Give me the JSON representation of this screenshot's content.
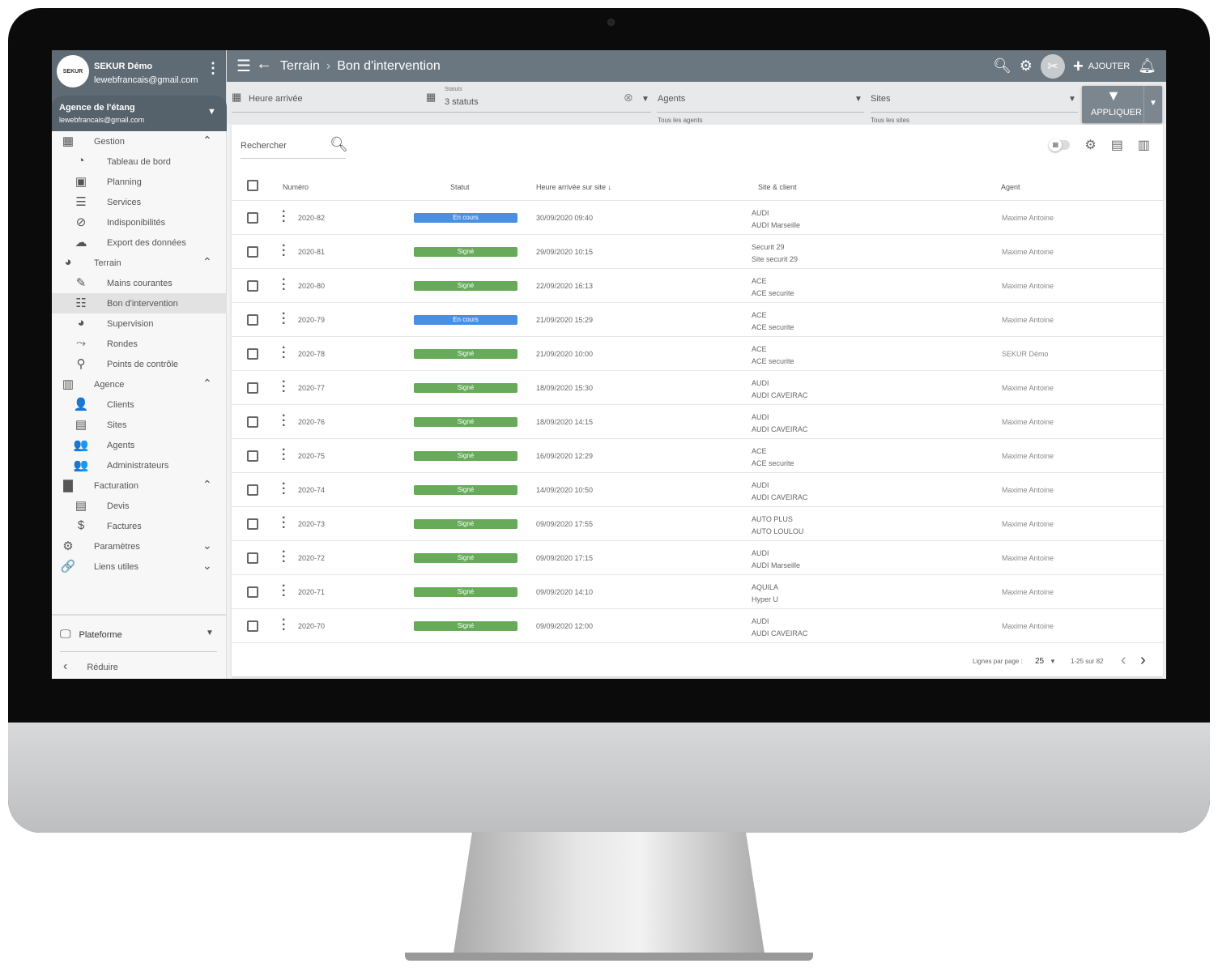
{
  "user": {
    "name": "SEKUR Démo",
    "email": "lewebfrancais@gmail.com",
    "logo": "SEKUR"
  },
  "agency": {
    "name": "Agence de l'étang",
    "email": "lewebfrancais@gmail.com"
  },
  "nav": [
    {
      "label": "Gestion",
      "type": "sec",
      "icon": "▦",
      "chev": "⌃"
    },
    {
      "label": "Tableau de bord",
      "type": "sub",
      "icon": "◔"
    },
    {
      "label": "Planning",
      "type": "sub",
      "icon": "▣"
    },
    {
      "label": "Services",
      "type": "sub",
      "icon": "☰"
    },
    {
      "label": "Indisponibilités",
      "type": "sub",
      "icon": "⊘"
    },
    {
      "label": "Export des données",
      "type": "sub",
      "icon": "☁"
    },
    {
      "label": "Terrain",
      "type": "sec",
      "icon": "◕",
      "chev": "⌃"
    },
    {
      "label": "Mains courantes",
      "type": "sub",
      "icon": "✎"
    },
    {
      "label": "Bon d'intervention",
      "type": "sub",
      "icon": "☷",
      "active": true
    },
    {
      "label": "Supervision",
      "type": "sub",
      "icon": "◕"
    },
    {
      "label": "Rondes",
      "type": "sub",
      "icon": "⤳"
    },
    {
      "label": "Points de contrôle",
      "type": "sub",
      "icon": "⚲"
    },
    {
      "label": "Agence",
      "type": "sec",
      "icon": "▥",
      "chev": "⌃"
    },
    {
      "label": "Clients",
      "type": "sub",
      "icon": "👤"
    },
    {
      "label": "Sites",
      "type": "sub",
      "icon": "▤"
    },
    {
      "label": "Agents",
      "type": "sub",
      "icon": "👥"
    },
    {
      "label": "Administrateurs",
      "type": "sub",
      "icon": "👥"
    },
    {
      "label": "Facturation",
      "type": "sec",
      "icon": "▇",
      "chev": "⌃"
    },
    {
      "label": "Devis",
      "type": "sub",
      "icon": "▤"
    },
    {
      "label": "Factures",
      "type": "sub",
      "icon": "$"
    },
    {
      "label": "Paramètres",
      "type": "sec",
      "icon": "⚙",
      "chev": "⌄"
    },
    {
      "label": "Liens utiles",
      "type": "sec",
      "icon": "🔗",
      "chev": "⌄"
    }
  ],
  "footer": {
    "platform": "Plateforme",
    "reduce": "Réduire"
  },
  "topbar": {
    "section": "Terrain",
    "page": "Bon d'intervention",
    "add": "AJOUTER"
  },
  "filters": {
    "date": "Heure arrivée",
    "status_label": "Statuts",
    "status_value": "3 statuts",
    "agents": "Agents",
    "agents_hint": "Tous les agents",
    "sites": "Sites",
    "sites_hint": "Tous les sites",
    "apply": "APPLIQUER"
  },
  "search": {
    "placeholder": "Rechercher"
  },
  "table": {
    "headers": {
      "number": "Numéro",
      "status": "Statut",
      "arrival": "Heure arrivée sur site ↓",
      "site": "Site & client",
      "agent": "Agent"
    },
    "rows": [
      {
        "number": "2020-82",
        "status": "En cours",
        "date": "30/09/2020 09:40",
        "client": "AUDI",
        "site": "AUDI Marseille",
        "agent": "Maxime Antoine"
      },
      {
        "number": "2020-81",
        "status": "Signé",
        "date": "29/09/2020 10:15",
        "client": "Securit 29",
        "site": "Site securit 29",
        "agent": "Maxime Antoine"
      },
      {
        "number": "2020-80",
        "status": "Signé",
        "date": "22/09/2020 16:13",
        "client": "ACE",
        "site": "ACE securite",
        "agent": "Maxime Antoine"
      },
      {
        "number": "2020-79",
        "status": "En cours",
        "date": "21/09/2020 15:29",
        "client": "ACE",
        "site": "ACE securite",
        "agent": "Maxime Antoine"
      },
      {
        "number": "2020-78",
        "status": "Signé",
        "date": "21/09/2020 10:00",
        "client": "ACE",
        "site": "ACE securite",
        "agent": "SEKUR Démo"
      },
      {
        "number": "2020-77",
        "status": "Signé",
        "date": "18/09/2020 15:30",
        "client": "AUDI",
        "site": "AUDI CAVEIRAC",
        "agent": "Maxime Antoine"
      },
      {
        "number": "2020-76",
        "status": "Signé",
        "date": "18/09/2020 14:15",
        "client": "AUDI",
        "site": "AUDI CAVEIRAC",
        "agent": "Maxime Antoine"
      },
      {
        "number": "2020-75",
        "status": "Signé",
        "date": "16/09/2020 12:29",
        "client": "ACE",
        "site": "ACE securite",
        "agent": "Maxime Antoine"
      },
      {
        "number": "2020-74",
        "status": "Signé",
        "date": "14/09/2020 10:50",
        "client": "AUDI",
        "site": "AUDI CAVEIRAC",
        "agent": "Maxime Antoine"
      },
      {
        "number": "2020-73",
        "status": "Signé",
        "date": "09/09/2020 17:55",
        "client": "AUTO PLUS",
        "site": "AUTO LOULOU",
        "agent": "Maxime Antoine"
      },
      {
        "number": "2020-72",
        "status": "Signé",
        "date": "09/09/2020 17:15",
        "client": "AUDI",
        "site": "AUDI Marseille",
        "agent": "Maxime Antoine"
      },
      {
        "number": "2020-71",
        "status": "Signé",
        "date": "09/09/2020 14:10",
        "client": "AQUILA",
        "site": "Hyper U",
        "agent": "Maxime Antoine"
      },
      {
        "number": "2020-70",
        "status": "Signé",
        "date": "09/09/2020 12:00",
        "client": "AUDI",
        "site": "AUDI CAVEIRAC",
        "agent": "Maxime Antoine"
      }
    ]
  },
  "pagination": {
    "rows_label": "Lignes par page :",
    "rows_value": "25",
    "range": "1-25 sur 82"
  },
  "colors": {
    "en_cours": "#4a90e2",
    "signe": "#66aa5a",
    "topbar": "#6b7780",
    "sidebar_head": "#5f6b74"
  }
}
